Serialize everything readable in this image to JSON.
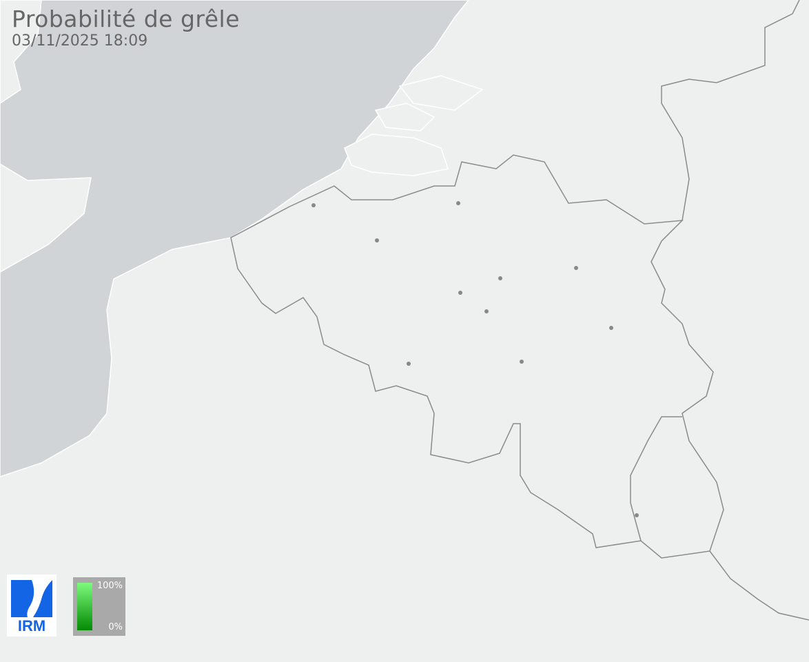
{
  "header": {
    "title": "Probabilité de grêle",
    "timestamp": "03/11/2025 18:09"
  },
  "logo": {
    "text": "IRM",
    "color": "#1464e6"
  },
  "legend": {
    "max_label": "100%",
    "min_label": "0%",
    "color_max": "#7dfa7d",
    "color_min": "#038a03"
  },
  "map": {
    "sea_color": "#d1d4d6",
    "land_color": "#eef0f0",
    "border_color": "#8a8a8a",
    "city_color": "#888888",
    "city_count": 11
  }
}
